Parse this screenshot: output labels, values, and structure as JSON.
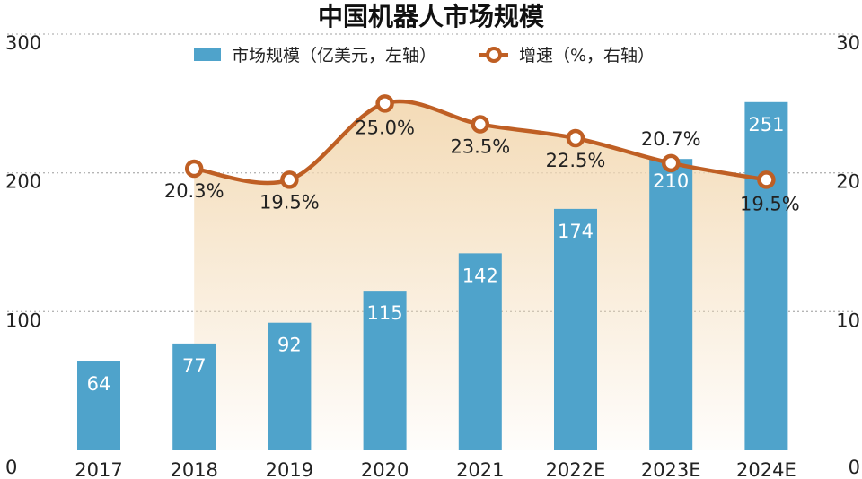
{
  "chart_data": {
    "type": "bar",
    "title": "中国机器人市场规模",
    "categories": [
      "2017",
      "2018",
      "2019",
      "2020",
      "2021",
      "2022E",
      "2023E",
      "2024E"
    ],
    "series": [
      {
        "name": "市场规模（亿美元，左轴）",
        "type": "bar",
        "axis": "left",
        "values": [
          64,
          77,
          92,
          115,
          142,
          174,
          210,
          251
        ],
        "labels": [
          "64",
          "77",
          "92",
          "115",
          "142",
          "174",
          "210",
          "251"
        ],
        "color": "#4fa3cb"
      },
      {
        "name": "增速（%，右轴）",
        "type": "line",
        "axis": "right",
        "values": [
          null,
          20.3,
          19.5,
          25.0,
          23.5,
          22.5,
          20.7,
          19.5
        ],
        "labels": [
          "",
          "20.3%",
          "19.5%",
          "25.0%",
          "23.5%",
          "22.5%",
          "20.7%",
          "19.5%"
        ],
        "color": "#bf5f24",
        "area_fill": "#f3d9b3"
      }
    ],
    "left_axis": {
      "ylim": [
        0,
        300
      ],
      "ticks": [
        "0",
        "100",
        "200",
        "300"
      ]
    },
    "right_axis": {
      "ylim": [
        0,
        30
      ],
      "ticks": [
        "0",
        "10",
        "20",
        "30"
      ]
    },
    "grid": "dotted-horizontal",
    "legend": "top-center"
  }
}
